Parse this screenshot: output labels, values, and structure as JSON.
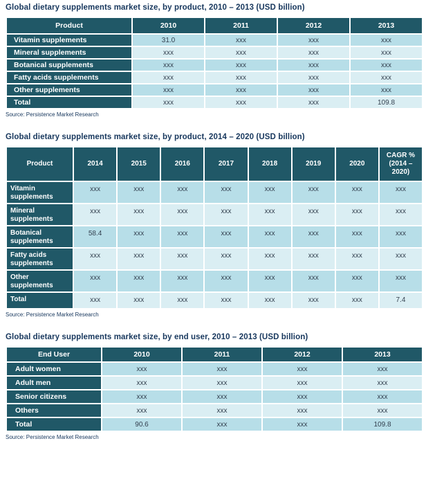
{
  "page": {
    "colors": {
      "header_bg": "#205867",
      "row_medium": "#B7DEE8",
      "row_light": "#DAEEF3",
      "title_text": "#17375D",
      "header_text": "#FFFFFF",
      "value_text": "#33404F"
    }
  },
  "tables": [
    {
      "title": "Global dietary supplements market size, by product, 2010 – 2013 (USD billion)",
      "columns": [
        "Product",
        "2010",
        "2011",
        "2012",
        "2013"
      ],
      "rows": [
        {
          "label": "Vitamin supplements",
          "values": [
            "31.0",
            "xxx",
            "xxx",
            "xxx"
          ]
        },
        {
          "label": "Mineral supplements",
          "values": [
            "xxx",
            "xxx",
            "xxx",
            "xxx"
          ]
        },
        {
          "label": "Botanical supplements",
          "values": [
            "xxx",
            "xxx",
            "xxx",
            "xxx"
          ]
        },
        {
          "label": "Fatty acids supplements",
          "values": [
            "xxx",
            "xxx",
            "xxx",
            "xxx"
          ]
        },
        {
          "label": "Other supplements",
          "values": [
            "xxx",
            "xxx",
            "xxx",
            "xxx"
          ]
        },
        {
          "label": "Total",
          "values": [
            "xxx",
            "xxx",
            "xxx",
            "109.8"
          ]
        }
      ],
      "source": "Source: Persistence Market Research"
    },
    {
      "title": "Global dietary supplements market size, by product, 2014 – 2020 (USD billion)",
      "columns": [
        "Product",
        "2014",
        "2015",
        "2016",
        "2017",
        "2018",
        "2019",
        "2020",
        "CAGR % (2014 – 2020)"
      ],
      "rows": [
        {
          "label": "Vitamin supplements",
          "values": [
            "xxx",
            "xxx",
            "xxx",
            "xxx",
            "xxx",
            "xxx",
            "xxx",
            "xxx"
          ]
        },
        {
          "label": "Mineral supplements",
          "values": [
            "xxx",
            "xxx",
            "xxx",
            "xxx",
            "xxx",
            "xxx",
            "xxx",
            "xxx"
          ]
        },
        {
          "label": "Botanical supplements",
          "values": [
            "58.4",
            "xxx",
            "xxx",
            "xxx",
            "xxx",
            "xxx",
            "xxx",
            "xxx"
          ]
        },
        {
          "label": "Fatty acids supplements",
          "values": [
            "xxx",
            "xxx",
            "xxx",
            "xxx",
            "xxx",
            "xxx",
            "xxx",
            "xxx"
          ]
        },
        {
          "label": "Other supplements",
          "values": [
            "xxx",
            "xxx",
            "xxx",
            "xxx",
            "xxx",
            "xxx",
            "xxx",
            "xxx"
          ]
        },
        {
          "label": "Total",
          "values": [
            "xxx",
            "xxx",
            "xxx",
            "xxx",
            "xxx",
            "xxx",
            "xxx",
            "7.4"
          ]
        }
      ],
      "source": "Source: Persistence Market Research"
    },
    {
      "title": "Global dietary supplements market size, by end user, 2010 – 2013 (USD billion)",
      "columns": [
        "End User",
        "2010",
        "2011",
        "2012",
        "2013"
      ],
      "rows": [
        {
          "label": "Adult women",
          "values": [
            "xxx",
            "xxx",
            "xxx",
            "xxx"
          ]
        },
        {
          "label": "Adult men",
          "values": [
            "xxx",
            "xxx",
            "xxx",
            "xxx"
          ]
        },
        {
          "label": "Senior citizens",
          "values": [
            "xxx",
            "xxx",
            "xxx",
            "xxx"
          ]
        },
        {
          "label": "Others",
          "values": [
            "xxx",
            "xxx",
            "xxx",
            "xxx"
          ]
        },
        {
          "label": "Total",
          "values": [
            "90.6",
            "xxx",
            "xxx",
            "109.8"
          ]
        }
      ],
      "source": "Source: Persistence Market Research"
    }
  ]
}
